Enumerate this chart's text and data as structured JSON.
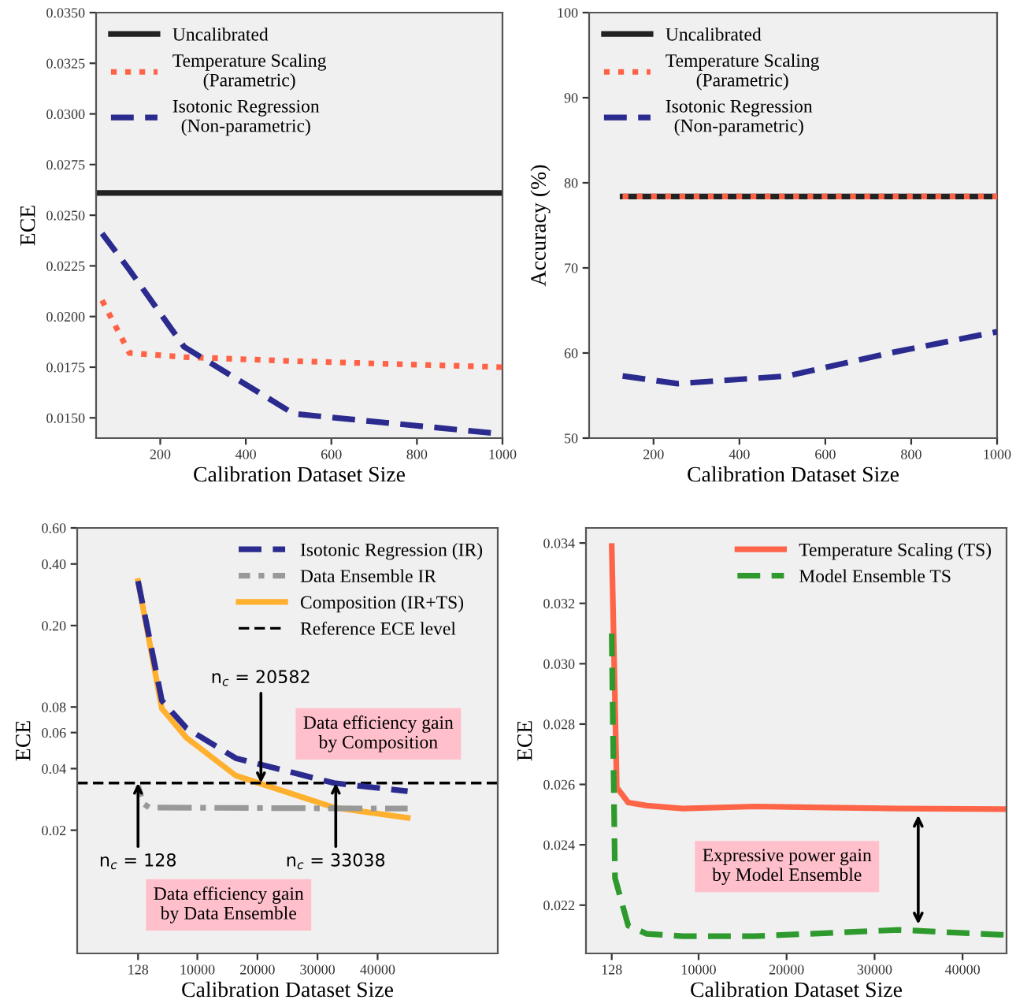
{
  "chart_data": [
    {
      "type": "line",
      "xlabel": "Calibration Dataset Size",
      "ylabel": "ECE",
      "xlim": [
        50,
        1000
      ],
      "xticks": [
        200,
        400,
        600,
        800,
        1000
      ],
      "ylim": [
        0.014,
        0.035
      ],
      "yticks": [
        {
          "value": 0.015,
          "label": "0.0150"
        },
        {
          "value": 0.0175,
          "label": "0.0175"
        },
        {
          "value": 0.02,
          "label": "0.0200"
        },
        {
          "value": 0.0225,
          "label": "0.0225"
        },
        {
          "value": 0.025,
          "label": "0.0250"
        },
        {
          "value": 0.0275,
          "label": "0.0275"
        },
        {
          "value": 0.03,
          "label": "0.0300"
        },
        {
          "value": 0.0325,
          "label": "0.0325"
        },
        {
          "value": 0.035,
          "label": "0.0350"
        }
      ],
      "legend": "top left",
      "grid": false,
      "series": [
        {
          "name": "Uncalibrated",
          "color": "#222222",
          "line_style": "solid",
          "x": [
            50,
            1000
          ],
          "values": [
            0.0261,
            0.0261
          ]
        },
        {
          "name": "Temperature Scaling\n(Parametric)",
          "color": "#ff6347",
          "line_style": "dotted",
          "x": [
            64,
            128,
            256,
            512,
            1000
          ],
          "values": [
            0.0208,
            0.0182,
            0.018,
            0.0178,
            0.0175
          ]
        },
        {
          "name": "Isotonic Regression\n(Non-parametric)",
          "color": "#2b2b8f",
          "line_style": "dashed",
          "x": [
            64,
            128,
            256,
            512,
            1000
          ],
          "values": [
            0.0241,
            0.0223,
            0.0185,
            0.0152,
            0.0142
          ]
        }
      ]
    },
    {
      "type": "line",
      "xlabel": "Calibration Dataset Size",
      "ylabel": "Accuracy (%)",
      "xlim": [
        50,
        1000
      ],
      "xticks": [
        200,
        400,
        600,
        800,
        1000
      ],
      "ylim": [
        50,
        100
      ],
      "yticks": [
        50,
        60,
        70,
        80,
        90,
        100
      ],
      "legend": "top left",
      "grid": false,
      "series": [
        {
          "name": "Uncalibrated",
          "color": "#222222",
          "line_style": "solid",
          "x": [
            128,
            1000
          ],
          "values": [
            78.4,
            78.4
          ]
        },
        {
          "name": "Temperature Scaling\n(Parametric)",
          "color": "#ff6347",
          "line_style": "dotted",
          "x": [
            128,
            1000
          ],
          "values": [
            78.4,
            78.4
          ]
        },
        {
          "name": "Isotonic Regression\n(Non-parametric)",
          "color": "#2b2b8f",
          "line_style": "dashed",
          "x": [
            128,
            256,
            512,
            750,
            1000
          ],
          "values": [
            57.3,
            56.4,
            57.3,
            60.0,
            62.5
          ]
        }
      ]
    },
    {
      "type": "line",
      "xlabel": "Calibration Dataset Size",
      "ylabel": "ECE",
      "log": true,
      "xlim": [
        -10000,
        60000
      ],
      "xticks": [
        128,
        10000,
        20000,
        30000,
        40000
      ],
      "ylim": [
        0.005,
        0.6
      ],
      "yticks": [
        {
          "value": 0.02,
          "label": "0.02"
        },
        {
          "value": 0.04,
          "label": "0.04"
        },
        {
          "value": 0.06,
          "label": "0.06"
        },
        {
          "value": 0.08,
          "label": "0.08"
        },
        {
          "value": 0.2,
          "label": "0.20"
        },
        {
          "value": 0.4,
          "label": "0.40"
        },
        {
          "value": 0.6,
          "label": "0.60"
        }
      ],
      "legend": "top right",
      "grid": false,
      "series": [
        {
          "name": "Isotonic Regression (IR)",
          "color": "#2b2b8f",
          "line_style": "dashed",
          "x": [
            128,
            4096,
            8192,
            16384,
            32768,
            45000
          ],
          "values": [
            0.33,
            0.086,
            0.063,
            0.045,
            0.034,
            0.031
          ]
        },
        {
          "name": "Data Ensemble IR",
          "color": "#999999",
          "line_style": "dashdot",
          "x": [
            128,
            1000,
            2000,
            45000
          ],
          "values": [
            0.033,
            0.027,
            0.0258,
            0.0255
          ]
        },
        {
          "name": "Composition (IR+TS)",
          "color": "#ffb02e",
          "line_style": "solid",
          "x": [
            128,
            4096,
            8192,
            16384,
            32768,
            45000
          ],
          "values": [
            0.33,
            0.0786,
            0.0566,
            0.037,
            0.0258,
            0.023
          ]
        }
      ],
      "ref_lines": [
        {
          "axis": "y",
          "value": 0.034,
          "label": "Reference ECE level",
          "color": "#000000",
          "line_style": "dashed"
        }
      ],
      "annotations": [
        {
          "text": "n$_{c}$ = 20582",
          "x": 20582,
          "y": 0.034
        },
        {
          "text": "n$_{c}$ = 128",
          "x": 128,
          "y": 0.034
        },
        {
          "text": "n$_{c}$ = 33038",
          "x": 33038,
          "y": 0.034
        },
        "Data efficiency gain\nby Composition",
        "Data efficiency gain\nby Data Ensemble"
      ]
    },
    {
      "type": "line",
      "xlabel": "Calibration Dataset Size",
      "ylabel": "ECE",
      "xlim": [
        -2800,
        45000
      ],
      "xticks": [
        128,
        10000,
        20000,
        30000,
        40000
      ],
      "ylim": [
        0.0204,
        0.0345
      ],
      "yticks": [
        0.022,
        0.024,
        0.026,
        0.028,
        {
          "value": 0.03,
          "label": "0.030"
        },
        0.032,
        0.034
      ],
      "legend": "top right",
      "grid": false,
      "series": [
        {
          "name": "Temperature Scaling (TS)",
          "color": "#fe6548",
          "line_style": "solid",
          "x": [
            128,
            700,
            2000,
            4096,
            8192,
            16384,
            32768,
            45000
          ],
          "values": [
            0.0339,
            0.0259,
            0.0254,
            0.0253,
            0.0252,
            0.02527,
            0.0252,
            0.02518
          ]
        },
        {
          "name": "Model Ensemble TS",
          "color": "#2e9a2e",
          "line_style": "dashed",
          "x": [
            128,
            500,
            2000,
            4096,
            8192,
            16384,
            32768,
            45000
          ],
          "values": [
            0.031,
            0.0229,
            0.02132,
            0.02105,
            0.02097,
            0.02097,
            0.02118,
            0.02101
          ]
        }
      ],
      "annotations": [
        "Expressive power gain\nby Model Ensemble"
      ]
    }
  ]
}
